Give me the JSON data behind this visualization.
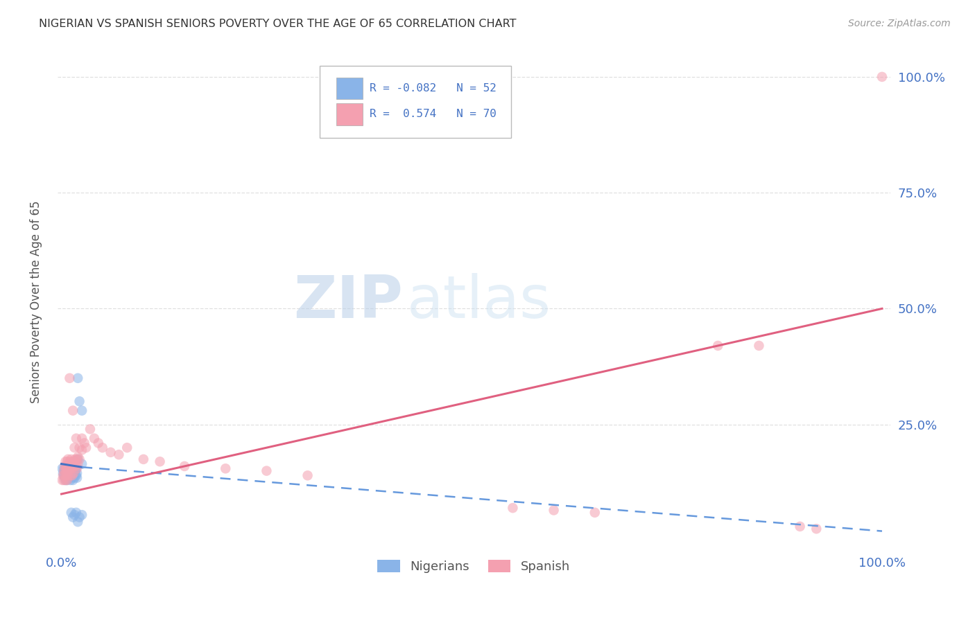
{
  "title": "NIGERIAN VS SPANISH SENIORS POVERTY OVER THE AGE OF 65 CORRELATION CHART",
  "source": "Source: ZipAtlas.com",
  "ylabel": "Seniors Poverty Over the Age of 65",
  "watermark_zip": "ZIP",
  "watermark_atlas": "atlas",
  "nigerian_color": "#8ab4e8",
  "nigerian_line_color": "#4472C4",
  "nigerian_line_color_dash": "#6699DD",
  "spanish_color": "#f4a0b0",
  "spanish_line_color": "#e06080",
  "axis_label_color": "#4472C4",
  "title_color": "#333333",
  "source_color": "#999999",
  "grid_color": "#dddddd",
  "background_color": "#ffffff",
  "nigerian_points": [
    [
      0.001,
      0.155
    ],
    [
      0.002,
      0.145
    ],
    [
      0.003,
      0.14
    ],
    [
      0.003,
      0.155
    ],
    [
      0.004,
      0.135
    ],
    [
      0.004,
      0.15
    ],
    [
      0.005,
      0.14
    ],
    [
      0.005,
      0.155
    ],
    [
      0.005,
      0.13
    ],
    [
      0.006,
      0.145
    ],
    [
      0.006,
      0.135
    ],
    [
      0.006,
      0.155
    ],
    [
      0.007,
      0.14
    ],
    [
      0.007,
      0.15
    ],
    [
      0.007,
      0.13
    ],
    [
      0.008,
      0.155
    ],
    [
      0.008,
      0.145
    ],
    [
      0.008,
      0.135
    ],
    [
      0.009,
      0.15
    ],
    [
      0.009,
      0.14
    ],
    [
      0.01,
      0.145
    ],
    [
      0.01,
      0.135
    ],
    [
      0.01,
      0.155
    ],
    [
      0.011,
      0.14
    ],
    [
      0.011,
      0.13
    ],
    [
      0.012,
      0.15
    ],
    [
      0.012,
      0.145
    ],
    [
      0.013,
      0.135
    ],
    [
      0.013,
      0.155
    ],
    [
      0.014,
      0.14
    ],
    [
      0.014,
      0.13
    ],
    [
      0.015,
      0.145
    ],
    [
      0.015,
      0.155
    ],
    [
      0.016,
      0.14
    ],
    [
      0.016,
      0.135
    ],
    [
      0.017,
      0.15
    ],
    [
      0.018,
      0.155
    ],
    [
      0.018,
      0.14
    ],
    [
      0.019,
      0.135
    ],
    [
      0.019,
      0.145
    ],
    [
      0.02,
      0.35
    ],
    [
      0.022,
      0.3
    ],
    [
      0.025,
      0.28
    ],
    [
      0.012,
      0.06
    ],
    [
      0.014,
      0.05
    ],
    [
      0.016,
      0.055
    ],
    [
      0.018,
      0.06
    ],
    [
      0.02,
      0.04
    ],
    [
      0.022,
      0.05
    ],
    [
      0.025,
      0.055
    ],
    [
      0.02,
      0.175
    ],
    [
      0.025,
      0.165
    ]
  ],
  "spanish_points": [
    [
      0.001,
      0.13
    ],
    [
      0.002,
      0.14
    ],
    [
      0.003,
      0.15
    ],
    [
      0.003,
      0.13
    ],
    [
      0.004,
      0.16
    ],
    [
      0.004,
      0.14
    ],
    [
      0.005,
      0.15
    ],
    [
      0.005,
      0.13
    ],
    [
      0.005,
      0.17
    ],
    [
      0.006,
      0.16
    ],
    [
      0.006,
      0.14
    ],
    [
      0.006,
      0.155
    ],
    [
      0.007,
      0.17
    ],
    [
      0.007,
      0.15
    ],
    [
      0.007,
      0.13
    ],
    [
      0.008,
      0.16
    ],
    [
      0.008,
      0.14
    ],
    [
      0.008,
      0.175
    ],
    [
      0.009,
      0.165
    ],
    [
      0.009,
      0.15
    ],
    [
      0.01,
      0.17
    ],
    [
      0.01,
      0.155
    ],
    [
      0.01,
      0.35
    ],
    [
      0.011,
      0.16
    ],
    [
      0.011,
      0.14
    ],
    [
      0.012,
      0.175
    ],
    [
      0.012,
      0.16
    ],
    [
      0.013,
      0.14
    ],
    [
      0.013,
      0.155
    ],
    [
      0.014,
      0.28
    ],
    [
      0.014,
      0.17
    ],
    [
      0.015,
      0.16
    ],
    [
      0.015,
      0.145
    ],
    [
      0.016,
      0.2
    ],
    [
      0.016,
      0.17
    ],
    [
      0.017,
      0.175
    ],
    [
      0.018,
      0.22
    ],
    [
      0.018,
      0.16
    ],
    [
      0.019,
      0.175
    ],
    [
      0.019,
      0.155
    ],
    [
      0.02,
      0.18
    ],
    [
      0.02,
      0.165
    ],
    [
      0.022,
      0.2
    ],
    [
      0.022,
      0.175
    ],
    [
      0.025,
      0.22
    ],
    [
      0.025,
      0.195
    ],
    [
      0.028,
      0.21
    ],
    [
      0.03,
      0.2
    ],
    [
      0.035,
      0.24
    ],
    [
      0.04,
      0.22
    ],
    [
      0.045,
      0.21
    ],
    [
      0.05,
      0.2
    ],
    [
      0.06,
      0.19
    ],
    [
      0.07,
      0.185
    ],
    [
      0.08,
      0.2
    ],
    [
      0.1,
      0.175
    ],
    [
      0.12,
      0.17
    ],
    [
      0.15,
      0.16
    ],
    [
      0.2,
      0.155
    ],
    [
      0.25,
      0.15
    ],
    [
      0.3,
      0.14
    ],
    [
      0.55,
      0.07
    ],
    [
      0.6,
      0.065
    ],
    [
      0.65,
      0.06
    ],
    [
      0.8,
      0.42
    ],
    [
      0.85,
      0.42
    ],
    [
      0.9,
      0.03
    ],
    [
      0.92,
      0.025
    ],
    [
      1.0,
      1.0
    ]
  ],
  "nig_trend_x0": 0.0,
  "nig_trend_y0": 0.165,
  "nig_trend_x1": 0.025,
  "nig_trend_y1": 0.158,
  "nig_trend_xd0": 0.025,
  "nig_trend_yd0": 0.158,
  "nig_trend_xd1": 1.0,
  "nig_trend_yd1": 0.02,
  "spa_trend_x0": 0.0,
  "spa_trend_y0": 0.1,
  "spa_trend_x1": 1.0,
  "spa_trend_y1": 0.5,
  "xmin": 0.0,
  "xmax": 1.0,
  "ymin": -0.02,
  "ymax": 1.05
}
